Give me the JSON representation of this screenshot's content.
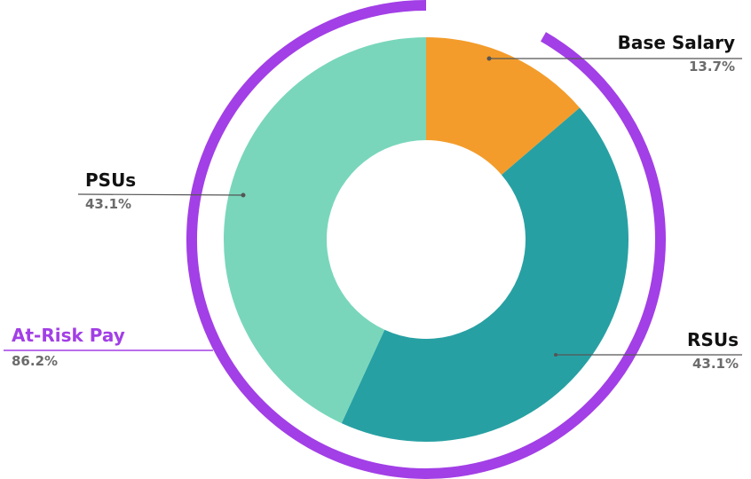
{
  "chart_data": {
    "type": "pie",
    "variant": "donut",
    "title": "",
    "categories": [
      "Base Salary",
      "RSUs",
      "PSUs"
    ],
    "values": [
      13.7,
      43.1,
      43.1
    ],
    "unit": "%",
    "colors": [
      "#f39c2b",
      "#27a0a3",
      "#79d6bb"
    ],
    "group_annotation": {
      "label": "At-Risk Pay",
      "value": 86.2,
      "value_label": "86.2%",
      "members": [
        "RSUs",
        "PSUs"
      ],
      "color": "#a23fe6"
    },
    "legend": "none (direct labels with leader lines)"
  },
  "labels": {
    "base_salary": {
      "name": "Base Salary",
      "pct": "13.7%"
    },
    "psus": {
      "name": "PSUs",
      "pct": "43.1%"
    },
    "rsus": {
      "name": "RSUs",
      "pct": "43.1%"
    },
    "at_risk": {
      "name": "At-Risk Pay",
      "pct": "86.2%"
    }
  },
  "colors": {
    "base_salary": "#f39c2b",
    "rsus": "#27a0a3",
    "psus": "#79d6bb",
    "at_risk": "#a23fe6",
    "leader": "#555555",
    "pct_text": "#6b6b6b"
  }
}
